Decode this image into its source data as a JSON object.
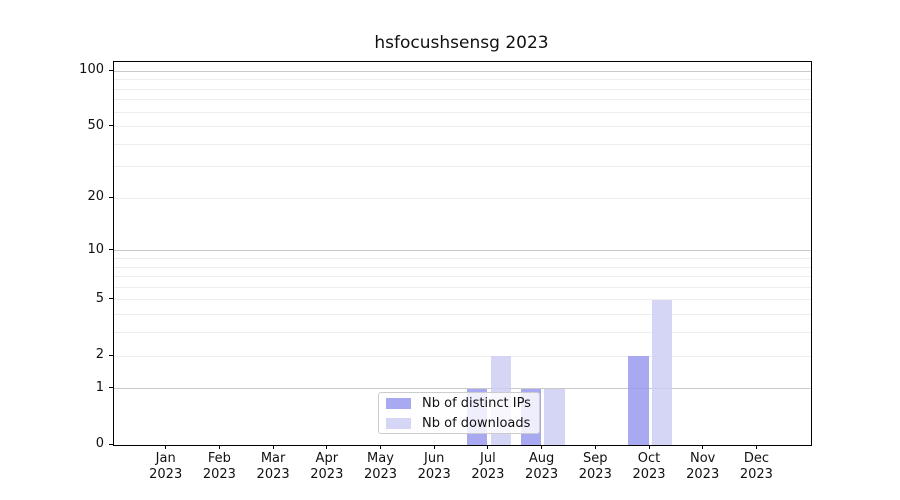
{
  "chart_data": {
    "type": "bar",
    "title": "hsfocushsensg 2023",
    "categories": [
      "Jan",
      "Feb",
      "Mar",
      "Apr",
      "May",
      "Jun",
      "Jul",
      "Aug",
      "Sep",
      "Oct",
      "Nov",
      "Dec"
    ],
    "year_label": "2023",
    "series": [
      {
        "name": "Nb of distinct IPs",
        "color": "#9a9af0",
        "values": [
          0,
          0,
          0,
          0,
          0,
          0,
          1,
          1,
          0,
          2,
          0,
          0
        ]
      },
      {
        "name": "Nb of downloads",
        "color": "#cecef5",
        "values": [
          0,
          0,
          0,
          0,
          0,
          0,
          2,
          1,
          0,
          5,
          0,
          0
        ]
      }
    ],
    "y_ticks": [
      0,
      1,
      2,
      5,
      10,
      20,
      50,
      100
    ],
    "y_grid_minor": [
      2,
      3,
      4,
      5,
      6,
      7,
      8,
      9,
      20,
      30,
      40,
      50,
      60,
      70,
      80,
      90
    ],
    "y_grid_major": [
      1,
      10,
      100
    ],
    "y_scale": "log1p",
    "ylim": [
      0,
      110
    ],
    "xlabel": "",
    "ylabel": "",
    "grid": true,
    "legend_position": "lower center"
  },
  "colors": {
    "grid_minor": "#ededed",
    "grid_major": "#c9c9c9",
    "axis": "#000000",
    "text": "#111111"
  }
}
